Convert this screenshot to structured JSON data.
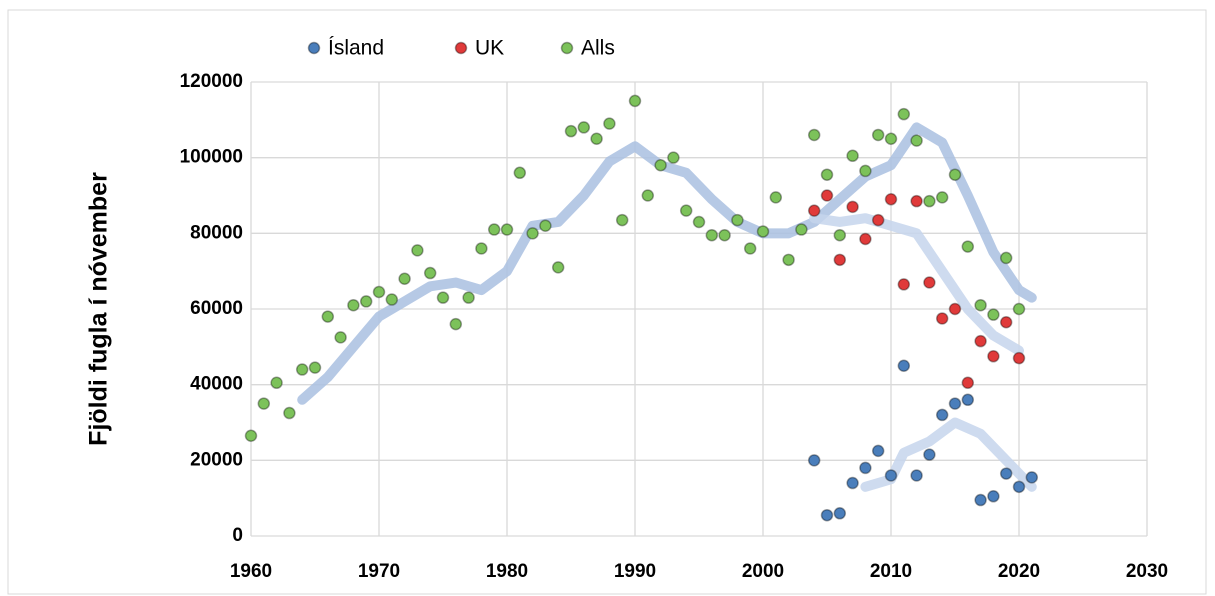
{
  "chart_data": {
    "type": "scatter",
    "ylabel": "Fjöldi fugla í nóvember",
    "xlim": [
      1960,
      2030
    ],
    "xticks": [
      1960,
      1970,
      1980,
      1990,
      2000,
      2010,
      2020,
      2030
    ],
    "ylim": [
      0,
      120000
    ],
    "yticks": [
      0,
      20000,
      40000,
      60000,
      80000,
      100000,
      120000
    ],
    "grid": true,
    "legend": "top",
    "series": [
      {
        "name": "Ísland",
        "color": "#4a7ebb",
        "x": [
          2004,
          2005,
          2006,
          2007,
          2008,
          2009,
          2010,
          2011,
          2012,
          2013,
          2014,
          2015,
          2016,
          2017,
          2018,
          2019,
          2020,
          2021
        ],
        "values": [
          20000,
          5500,
          6000,
          14000,
          18000,
          22500,
          16000,
          45000,
          16000,
          21500,
          32000,
          35000,
          36000,
          9500,
          10500,
          16500,
          13000,
          15500
        ]
      },
      {
        "name": "UK",
        "color": "#e03a3a",
        "x": [
          2004,
          2005,
          2006,
          2007,
          2008,
          2009,
          2010,
          2011,
          2012,
          2013,
          2014,
          2015,
          2016,
          2017,
          2018,
          2019,
          2020
        ],
        "values": [
          86000,
          90000,
          73000,
          87000,
          78500,
          83500,
          89000,
          66500,
          88500,
          67000,
          57500,
          60000,
          40500,
          51500,
          47500,
          56500,
          47000
        ]
      },
      {
        "name": "Alls",
        "color": "#7cc25a",
        "x": [
          1960,
          1961,
          1962,
          1963,
          1964,
          1965,
          1966,
          1967,
          1968,
          1969,
          1970,
          1971,
          1972,
          1973,
          1974,
          1975,
          1976,
          1977,
          1978,
          1979,
          1980,
          1981,
          1982,
          1983,
          1984,
          1985,
          1986,
          1987,
          1988,
          1989,
          1990,
          1991,
          1992,
          1993,
          1994,
          1995,
          1996,
          1997,
          1998,
          1999,
          2000,
          2001,
          2002,
          2003,
          2004,
          2005,
          2006,
          2007,
          2008,
          2009,
          2010,
          2011,
          2012,
          2013,
          2014,
          2015,
          2016,
          2017,
          2018,
          2019,
          2020
        ],
        "values": [
          26500,
          35000,
          40500,
          32500,
          44000,
          44500,
          58000,
          52500,
          61000,
          62000,
          64500,
          62500,
          68000,
          75500,
          69500,
          63000,
          56000,
          63000,
          76000,
          81000,
          81000,
          96000,
          80000,
          82000,
          71000,
          107000,
          108000,
          105000,
          109000,
          83500,
          115000,
          90000,
          98000,
          100000,
          86000,
          83000,
          79500,
          79500,
          83500,
          76000,
          80500,
          89500,
          73000,
          81000,
          106000,
          95500,
          79500,
          100500,
          96500,
          106000,
          105000,
          111500,
          104500,
          88500,
          89500,
          95500,
          76500,
          61000,
          58500,
          73500,
          60000
        ]
      }
    ],
    "trendlines": [
      {
        "color": "#a9bfe0",
        "x": [
          1964,
          1966,
          1968,
          1970,
          1972,
          1974,
          1976,
          1978,
          1980,
          1982,
          1984,
          1986,
          1988,
          1990,
          1992,
          1994,
          1996,
          1998,
          2000,
          2002,
          2004,
          2006,
          2008,
          2010,
          2012,
          2014,
          2016,
          2018,
          2020,
          2021
        ],
        "values": [
          36000,
          42000,
          50000,
          58000,
          62000,
          66000,
          67000,
          65000,
          70000,
          82000,
          83000,
          90000,
          99000,
          103000,
          98000,
          96000,
          89000,
          83000,
          80000,
          80000,
          83000,
          89000,
          95000,
          98000,
          108000,
          104000,
          90000,
          75000,
          65000,
          63000
        ]
      },
      {
        "color": "#c6d5ec",
        "x": [
          2004,
          2006,
          2008,
          2010,
          2012,
          2014,
          2016,
          2018,
          2020
        ],
        "values": [
          84000,
          83000,
          84000,
          82000,
          80000,
          70000,
          60000,
          53000,
          49000
        ]
      },
      {
        "color": "#c6d5ec",
        "x": [
          2008,
          2010,
          2011,
          2013,
          2015,
          2017,
          2019,
          2021
        ],
        "values": [
          13000,
          15000,
          22000,
          25000,
          30000,
          27000,
          20000,
          13000
        ]
      }
    ]
  }
}
